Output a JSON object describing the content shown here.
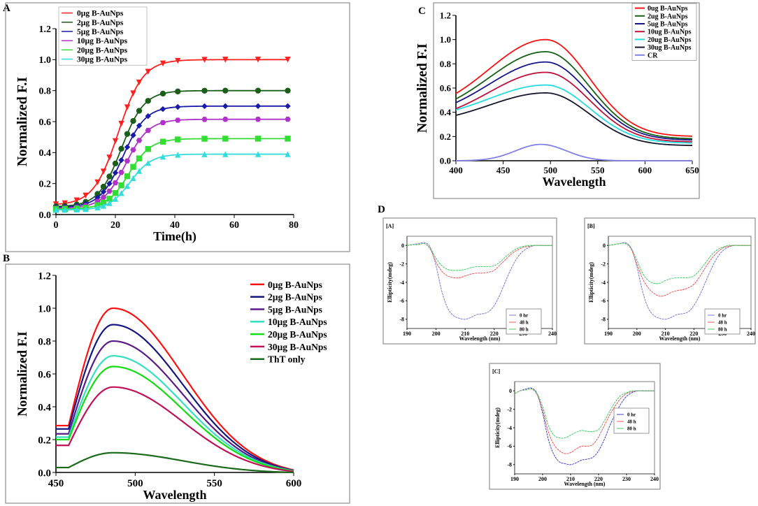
{
  "figure": {
    "panel_labels": [
      "A",
      "B",
      "C",
      "D"
    ]
  },
  "chart_data": [
    {
      "id": "A",
      "type": "line",
      "title": "",
      "xlabel": "Time(h)",
      "ylabel": "Normalized F.I",
      "xlim": [
        0,
        80
      ],
      "ylim": [
        0,
        1.2
      ],
      "xticks": [
        0,
        20,
        40,
        60,
        80
      ],
      "yticks": [
        0.0,
        0.2,
        0.4,
        0.6,
        0.8,
        1.0,
        1.2
      ],
      "xtick_labels": [
        "0",
        "20",
        "40",
        "60",
        "80"
      ],
      "ytick_labels": [
        "0.0",
        "0.2",
        "0.4",
        "0.6",
        "0.8",
        "1.0",
        "1.2"
      ],
      "fit": "sigmoid",
      "x": [
        0,
        3,
        7,
        10,
        14,
        16,
        18,
        20,
        22,
        24,
        26,
        28,
        31,
        36,
        41,
        50,
        57,
        68,
        78
      ],
      "series": [
        {
          "name": "0µg B-AuNps",
          "color": "#ff2020",
          "marker": "triangle-down",
          "t50": 21,
          "k": 0.24,
          "start": 0.06,
          "end": 1.0
        },
        {
          "name": "2µg B-AuNps",
          "color": "#1a5e1a",
          "marker": "circle",
          "t50": 22,
          "k": 0.26,
          "start": 0.05,
          "end": 0.8
        },
        {
          "name": "5µg B-AuNps",
          "color": "#1a1aa8",
          "marker": "diamond",
          "t50": 22.5,
          "k": 0.26,
          "start": 0.045,
          "end": 0.7
        },
        {
          "name": "10µg B-AuNps",
          "color": "#b032c8",
          "marker": "hexagon",
          "t50": 23.5,
          "k": 0.26,
          "start": 0.04,
          "end": 0.615
        },
        {
          "name": "20µg B-AuNps",
          "color": "#33dd33",
          "marker": "square",
          "t50": 24.5,
          "k": 0.27,
          "start": 0.035,
          "end": 0.49
        },
        {
          "name": "30µg B-AuNps",
          "color": "#33dddd",
          "marker": "triangle-up",
          "t50": 25,
          "k": 0.28,
          "start": 0.03,
          "end": 0.39
        }
      ]
    },
    {
      "id": "B",
      "type": "line",
      "title": "",
      "xlabel": "Wavelength",
      "ylabel": "Normalized F.I",
      "xlim": [
        450,
        600
      ],
      "ylim": [
        0,
        1.2
      ],
      "xticks": [
        450,
        500,
        550,
        600
      ],
      "yticks": [
        0.0,
        0.2,
        0.4,
        0.6,
        0.8,
        1.0,
        1.2
      ],
      "xtick_labels": [
        "450",
        "500",
        "550",
        "600"
      ],
      "ytick_labels": [
        "0.0",
        "0.2",
        "0.4",
        "0.6",
        "0.8",
        "1.0",
        "1.2"
      ],
      "series": [
        {
          "name": "0µg B-AuNps",
          "color": "#ff1010",
          "peak_x": 486,
          "peak": 1.0,
          "start": 0.285,
          "end": 0.015
        },
        {
          "name": "2µg B-AuNps",
          "color": "#151580",
          "peak_x": 486,
          "peak": 0.9,
          "start": 0.265,
          "end": 0.012
        },
        {
          "name": "5µg B-AuNps",
          "color": "#5a1a8a",
          "peak_x": 486,
          "peak": 0.8,
          "start": 0.235,
          "end": 0.01
        },
        {
          "name": "10µg B-AuNps",
          "color": "#33e0c0",
          "peak_x": 486,
          "peak": 0.71,
          "start": 0.215,
          "end": 0.01
        },
        {
          "name": "20µg B-AuNps",
          "color": "#11dd11",
          "peak_x": 486,
          "peak": 0.645,
          "start": 0.2,
          "end": 0.008
        },
        {
          "name": "30µg B-AuNps",
          "color": "#c0105a",
          "peak_x": 486,
          "peak": 0.52,
          "start": 0.165,
          "end": 0.006
        },
        {
          "name": "ThT only",
          "color": "#1a6a1a",
          "peak_x": 486,
          "peak": 0.12,
          "start": 0.03,
          "end": 0.0
        }
      ]
    },
    {
      "id": "C",
      "type": "line",
      "title": "",
      "xlabel": "Wavelength",
      "ylabel": "Normalized F.I",
      "xlim": [
        400,
        650
      ],
      "ylim": [
        0,
        1.2
      ],
      "xticks": [
        400,
        450,
        500,
        550,
        600,
        650
      ],
      "yticks": [
        0.0,
        0.2,
        0.4,
        0.6,
        0.8,
        1.0,
        1.2
      ],
      "xtick_labels": [
        "400",
        "450",
        "500",
        "550",
        "600",
        "650"
      ],
      "ytick_labels": [
        "0.0",
        "0.2",
        "0.4",
        "0.6",
        "0.8",
        "1.0",
        "1.2"
      ],
      "series": [
        {
          "name": "0ug B-AuNps",
          "color": "#ff1010",
          "peak_x": 495,
          "peak": 1.0,
          "start": 0.555,
          "end": 0.2
        },
        {
          "name": "2ug B-AuNps",
          "color": "#156015",
          "peak_x": 495,
          "peak": 0.9,
          "start": 0.51,
          "end": 0.18
        },
        {
          "name": "5ug B-AuNps",
          "color": "#15158a",
          "peak_x": 495,
          "peak": 0.815,
          "start": 0.48,
          "end": 0.17
        },
        {
          "name": "10ug B-AuNps",
          "color": "#c0103a",
          "peak_x": 495,
          "peak": 0.73,
          "start": 0.43,
          "end": 0.155
        },
        {
          "name": "20ug B-AuNps",
          "color": "#22dddd",
          "peak_x": 495,
          "peak": 0.625,
          "start": 0.42,
          "end": 0.145
        },
        {
          "name": "30ug B-AuNps",
          "color": "#151530",
          "peak_x": 495,
          "peak": 0.56,
          "start": 0.375,
          "end": 0.125
        },
        {
          "name": "CR",
          "color": "#8080e8",
          "peak_x": 490,
          "peak": 0.135,
          "start": 0.0,
          "end": 0.0
        }
      ]
    },
    {
      "id": "D-A",
      "type": "line",
      "tag": "[A]",
      "xlabel": "Wavelength (nm)",
      "ylabel": "Ellipticity(mdeg)",
      "xlim": [
        190,
        240
      ],
      "ylim": [
        -9,
        1
      ],
      "xticks": [
        190,
        200,
        210,
        220,
        230,
        240
      ],
      "yticks": [
        0,
        -2,
        -4,
        -6,
        -8
      ],
      "xtick_labels": [
        "190",
        "200",
        "210",
        "220",
        "230",
        "240"
      ],
      "ytick_labels": [
        "0",
        "-2",
        "-4",
        "-6",
        "-8"
      ],
      "x": [
        190,
        192,
        194,
        196,
        198,
        200,
        202,
        204,
        206,
        208,
        210,
        212,
        214,
        216,
        218,
        220,
        222,
        224,
        226,
        228,
        230,
        232,
        234,
        236,
        238,
        240
      ],
      "series": [
        {
          "name": "0 hr",
          "color": "#7777dd",
          "y": [
            0,
            0.1,
            0.2,
            0.3,
            -0.2,
            -2.2,
            -5,
            -6.8,
            -7.6,
            -7.9,
            -8.0,
            -7.8,
            -7.5,
            -7.4,
            -7.2,
            -6.5,
            -5.3,
            -3.8,
            -2.4,
            -1.3,
            -0.6,
            -0.2,
            0.0,
            0.0,
            0.0,
            0.0
          ]
        },
        {
          "name": "48 h",
          "color": "#ee5555",
          "y": [
            0,
            0.1,
            0.1,
            0.2,
            -0.4,
            -1.8,
            -2.8,
            -3.3,
            -3.5,
            -3.5,
            -3.3,
            -3.1,
            -3.0,
            -3.0,
            -2.9,
            -2.7,
            -2.1,
            -1.5,
            -0.9,
            -0.5,
            -0.2,
            -0.1,
            0.0,
            0.0,
            0.0,
            0.0
          ]
        },
        {
          "name": "80 h",
          "color": "#44cc66",
          "y": [
            0,
            0.1,
            0.1,
            0.2,
            -0.3,
            -1.4,
            -2.2,
            -2.6,
            -2.7,
            -2.7,
            -2.6,
            -2.4,
            -2.3,
            -2.3,
            -2.3,
            -2.2,
            -1.8,
            -1.2,
            -0.7,
            -0.3,
            -0.1,
            0.0,
            0.0,
            0.0,
            0.0,
            0.0
          ]
        }
      ]
    },
    {
      "id": "D-B",
      "type": "line",
      "tag": "[B]",
      "xlabel": "Wavelength (nm)",
      "ylabel": "Ellipticity(mdeg)",
      "xlim": [
        190,
        240
      ],
      "ylim": [
        -9,
        1
      ],
      "xticks": [
        190,
        200,
        210,
        220,
        230,
        240
      ],
      "yticks": [
        0,
        -2,
        -4,
        -6,
        -8
      ],
      "xtick_labels": [
        "190",
        "200",
        "210",
        "220",
        "230",
        "240"
      ],
      "ytick_labels": [
        "0",
        "-2",
        "-4",
        "-6",
        "-8"
      ],
      "x": [
        190,
        192,
        194,
        196,
        198,
        200,
        202,
        204,
        206,
        208,
        210,
        212,
        214,
        216,
        218,
        220,
        222,
        224,
        226,
        228,
        230,
        232,
        234,
        236,
        238,
        240
      ],
      "series": [
        {
          "name": "0 hr",
          "color": "#7777dd",
          "y": [
            0,
            0.1,
            0.2,
            0.3,
            -0.3,
            -2.3,
            -5,
            -6.8,
            -7.6,
            -7.9,
            -8.0,
            -7.8,
            -7.5,
            -7.4,
            -7.2,
            -6.5,
            -5.4,
            -4.0,
            -2.6,
            -1.4,
            -0.6,
            -0.2,
            0.0,
            0.0,
            0.0,
            0.0
          ]
        },
        {
          "name": "48 h",
          "color": "#ee5555",
          "y": [
            0,
            0.1,
            0.2,
            0.2,
            -0.4,
            -2.0,
            -3.6,
            -4.6,
            -5.2,
            -5.5,
            -5.4,
            -5.1,
            -4.9,
            -4.8,
            -4.6,
            -4.2,
            -3.4,
            -2.4,
            -1.5,
            -0.8,
            -0.3,
            -0.1,
            0.0,
            0.0,
            0.0,
            0.0
          ]
        },
        {
          "name": "80 h",
          "color": "#44cc66",
          "y": [
            0,
            0.1,
            0.2,
            0.2,
            -0.3,
            -1.6,
            -3.0,
            -3.8,
            -4.1,
            -4.1,
            -3.8,
            -3.6,
            -3.5,
            -3.5,
            -3.5,
            -3.3,
            -2.7,
            -1.9,
            -1.1,
            -0.5,
            -0.2,
            0.0,
            0.0,
            0.0,
            0.0,
            0.0
          ]
        }
      ]
    },
    {
      "id": "D-C",
      "type": "line",
      "tag": "[C]",
      "xlabel": "Wavelength (nm)",
      "ylabel": "Ellipticity(mdeg)",
      "xlim": [
        190,
        240
      ],
      "ylim": [
        -9,
        1
      ],
      "xticks": [
        190,
        200,
        210,
        220,
        230,
        240
      ],
      "yticks": [
        0,
        -2,
        -4,
        -6,
        -8
      ],
      "xtick_labels": [
        "190",
        "200",
        "210",
        "220",
        "230",
        "240"
      ],
      "ytick_labels": [
        "0",
        "-2",
        "-4",
        "-6",
        "-8"
      ],
      "x": [
        190,
        192,
        194,
        196,
        198,
        200,
        202,
        204,
        206,
        208,
        210,
        212,
        214,
        216,
        218,
        220,
        222,
        224,
        226,
        228,
        230,
        232,
        234,
        236,
        238,
        240
      ],
      "series": [
        {
          "name": "0 hr",
          "color": "#4444cc",
          "y": [
            -0.3,
            0.0,
            0.2,
            0.3,
            -0.3,
            -2.4,
            -5.2,
            -6.9,
            -7.7,
            -7.9,
            -8.0,
            -7.8,
            -7.5,
            -7.4,
            -7.2,
            -6.5,
            -5.3,
            -3.8,
            -2.5,
            -1.4,
            -0.6,
            -0.2,
            0.0,
            0.0,
            0.0,
            0.0
          ]
        },
        {
          "name": "48 h",
          "color": "#ee5555",
          "y": [
            -0.3,
            0.0,
            0.1,
            0.2,
            -0.4,
            -2.1,
            -4.4,
            -5.8,
            -6.5,
            -6.8,
            -6.7,
            -6.3,
            -6.0,
            -6.0,
            -5.8,
            -5.0,
            -3.8,
            -2.6,
            -1.6,
            -0.8,
            -0.3,
            -0.1,
            0.0,
            0.0,
            0.0,
            0.0
          ]
        },
        {
          "name": "80 h",
          "color": "#44cc66",
          "y": [
            -0.3,
            0.0,
            0.1,
            0.2,
            -0.3,
            -1.7,
            -3.7,
            -4.8,
            -5.1,
            -5.1,
            -4.8,
            -4.5,
            -4.3,
            -4.4,
            -4.4,
            -4.2,
            -3.3,
            -2.2,
            -1.2,
            -0.5,
            -0.2,
            0.0,
            0.0,
            0.0,
            0.0,
            0.0
          ]
        }
      ]
    }
  ]
}
